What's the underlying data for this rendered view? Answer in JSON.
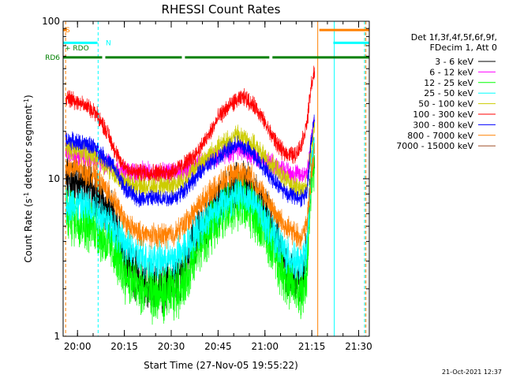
{
  "chart_data": {
    "type": "line",
    "title": "RHESSI Count Rates",
    "xlabel": "Start Time (27-Nov-05 19:55:22)",
    "ylabel_main": "Count Rate (s",
    "ylabel_sup1": "-1",
    "ylabel_mid": " detector segment",
    "ylabel_sup2": "-1",
    "ylabel_end": ")",
    "x_unit": "minutes after 19:55:22",
    "xlim": [
      0,
      98
    ],
    "ylim": [
      1,
      100
    ],
    "y_scale": "log",
    "x_ticks": [
      {
        "label": "20:00",
        "value": 4.6
      },
      {
        "label": "20:15",
        "value": 19.6
      },
      {
        "label": "20:30",
        "value": 34.6
      },
      {
        "label": "20:45",
        "value": 49.6
      },
      {
        "label": "21:00",
        "value": 64.6
      },
      {
        "label": "21:15",
        "value": 79.6
      },
      {
        "label": "21:30",
        "value": 94.6
      }
    ],
    "y_ticks": [
      {
        "label": "1",
        "value": 1
      },
      {
        "label": "10",
        "value": 10
      },
      {
        "label": "100",
        "value": 100
      }
    ],
    "legend_header": [
      "Det 1f,3f,4f,5f,6f,9f,",
      "FDecim 1, Att 0"
    ],
    "legend_position": "right",
    "series": [
      {
        "name": "3 - 6 keV",
        "color": "#000000",
        "x": [
          0,
          5,
          10,
          16,
          20,
          24,
          30,
          36,
          40,
          44,
          48,
          52,
          56,
          60,
          64,
          68,
          72,
          76,
          78,
          79.5,
          80.5
        ],
        "y": [
          10,
          9.5,
          8.5,
          5.5,
          3.2,
          2.3,
          2.0,
          2.2,
          3.2,
          5.0,
          6.5,
          8.0,
          9.2,
          8.5,
          6.5,
          4.2,
          2.6,
          2.1,
          3.5,
          12,
          15
        ]
      },
      {
        "name": "6 - 12 keV",
        "color": "#ff00ff",
        "x": [
          0,
          5,
          10,
          16,
          20,
          24,
          30,
          36,
          40,
          44,
          48,
          52,
          56,
          60,
          64,
          68,
          72,
          76,
          78,
          79.5,
          80.5
        ],
        "y": [
          15,
          14,
          13,
          12,
          11,
          11,
          11,
          11,
          11.5,
          12.5,
          13.5,
          14.5,
          15.5,
          14.5,
          13,
          12,
          11,
          10.5,
          11,
          18,
          25
        ]
      },
      {
        "name": "12 - 25 keV",
        "color": "#00ff00",
        "x": [
          0,
          5,
          10,
          16,
          20,
          24,
          30,
          36,
          40,
          44,
          48,
          52,
          56,
          60,
          64,
          68,
          72,
          76,
          78,
          79.5,
          80.5
        ],
        "y": [
          6.0,
          5.5,
          5.0,
          3.5,
          2.5,
          2.0,
          1.8,
          1.9,
          2.5,
          3.8,
          5.2,
          6.5,
          7.2,
          6.5,
          4.8,
          3.4,
          2.2,
          1.8,
          2.5,
          10,
          13
        ]
      },
      {
        "name": "25 - 50 keV",
        "color": "#00ffff",
        "x": [
          0,
          5,
          10,
          16,
          20,
          24,
          30,
          36,
          40,
          44,
          48,
          52,
          56,
          60,
          64,
          68,
          72,
          76,
          78,
          79.5,
          80.5
        ],
        "y": [
          7.0,
          6.8,
          6.5,
          5.0,
          3.8,
          3.2,
          3.0,
          3.1,
          3.8,
          5.0,
          6.2,
          7.2,
          8.0,
          7.5,
          5.8,
          4.2,
          3.2,
          2.8,
          3.5,
          12,
          16
        ]
      },
      {
        "name": "50 - 100 keV",
        "color": "#cccc00",
        "x": [
          0,
          5,
          10,
          16,
          20,
          24,
          30,
          36,
          40,
          44,
          48,
          52,
          56,
          60,
          64,
          68,
          72,
          76,
          78,
          79.5,
          80.5
        ],
        "y": [
          16,
          15,
          14,
          11,
          9.5,
          9,
          9,
          9.2,
          10.5,
          12.5,
          15,
          17,
          19,
          17,
          14,
          11.5,
          9.5,
          8.5,
          9,
          16,
          22
        ]
      },
      {
        "name": "100 - 300 keV",
        "color": "#ff0000",
        "x": [
          0,
          3,
          6,
          10,
          14,
          18,
          22,
          28,
          34,
          38,
          42,
          46,
          50,
          54,
          58,
          62,
          66,
          70,
          74,
          76,
          78,
          79.5,
          80.5
        ],
        "y": [
          33,
          32,
          30,
          27,
          20,
          13,
          11,
          11,
          11,
          12,
          14,
          18,
          25,
          30,
          33,
          28,
          20,
          15,
          14,
          16,
          22,
          40,
          48
        ]
      },
      {
        "name": "300 - 800 keV",
        "color": "#0000ff",
        "x": [
          0,
          5,
          10,
          16,
          20,
          24,
          30,
          36,
          40,
          44,
          48,
          52,
          56,
          60,
          64,
          68,
          72,
          76,
          78,
          79.5,
          80.5
        ],
        "y": [
          18,
          17,
          16,
          12,
          8.5,
          7.5,
          7.5,
          7.6,
          9,
          11,
          13,
          15,
          16.5,
          15,
          12,
          9.5,
          8,
          7.5,
          8,
          18,
          25
        ]
      },
      {
        "name": "800 - 7000 keV",
        "color": "#ff8000",
        "x": [
          0,
          5,
          10,
          16,
          20,
          24,
          30,
          36,
          40,
          44,
          48,
          52,
          56,
          60,
          64,
          68,
          72,
          76,
          78,
          79.5,
          80.5
        ],
        "y": [
          12,
          11.5,
          10.5,
          7.5,
          5.2,
          4.5,
          4.3,
          4.5,
          5.5,
          7.0,
          8.5,
          10,
          11,
          10.5,
          8,
          6,
          4.8,
          4.2,
          5,
          11,
          15
        ]
      },
      {
        "name": "7000 - 15000 keV",
        "color": "#a0522d",
        "x": [],
        "y": []
      }
    ],
    "flags": [
      {
        "name": "S",
        "color": "#ff8000",
        "segments": [
          [
            0,
            1.2
          ],
          [
            82,
            98
          ]
        ],
        "level": 88
      },
      {
        "name": "N",
        "color": "#00ffff",
        "segments": [
          [
            0,
            11
          ],
          [
            86.5,
            98
          ]
        ],
        "level": 73
      },
      {
        "name": "RDO",
        "color": "#008000",
        "segments": [],
        "level": 66
      },
      {
        "name": "RD6",
        "color": "#008000",
        "segments": [
          [
            0,
            12.5
          ],
          [
            13.5,
            38
          ],
          [
            39,
            66
          ],
          [
            67,
            98
          ]
        ],
        "level": 59
      }
    ],
    "vertical_markers": [
      {
        "x": 0.8,
        "color": "#ff8000",
        "style": "dashed"
      },
      {
        "x": 11.2,
        "color": "#00ffff",
        "style": "dashed"
      },
      {
        "x": 81.5,
        "color": "#ff8000",
        "style": "solid"
      },
      {
        "x": 86.8,
        "color": "#00ffff",
        "style": "solid"
      },
      {
        "x": 96.5,
        "color": "#00ffff",
        "style": "dashed"
      },
      {
        "x": 96.9,
        "color": "#ff8000",
        "style": "dashed"
      }
    ],
    "timestamp": "21-Oct-2021 12:37"
  }
}
